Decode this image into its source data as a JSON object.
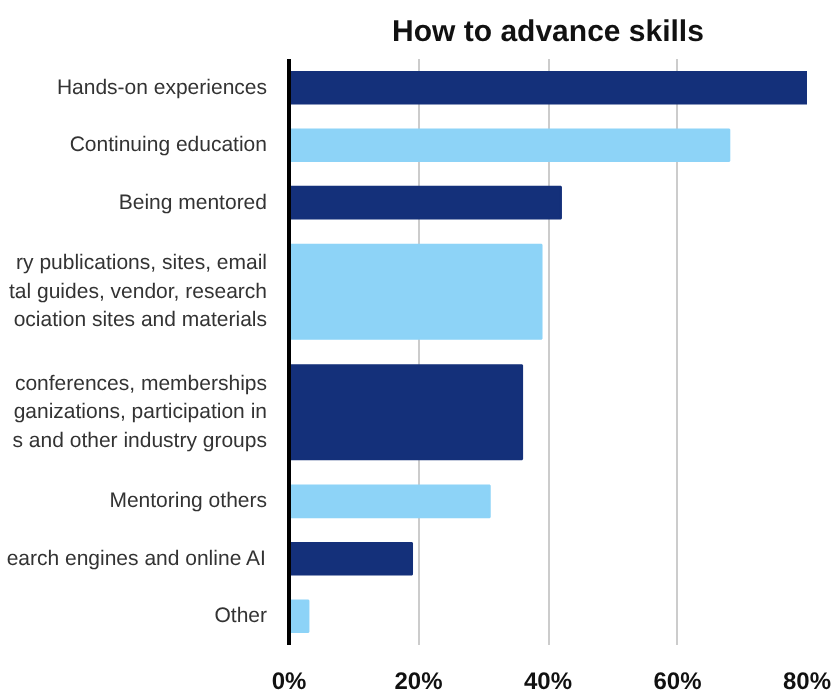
{
  "chart_data": {
    "type": "bar",
    "orientation": "horizontal",
    "title": "How to advance skills",
    "categories": [
      "Hands-on experiences",
      "Continuing education",
      "Being mentored",
      "ry publications, sites, email\ntal guides, vendor, research\nociation sites and materials",
      "conferences, memberships\nganizations, participation in\ns and other industry groups",
      "Mentoring others",
      "earch engines and online AI",
      "Other"
    ],
    "values": [
      80,
      68,
      42,
      39,
      36,
      31,
      19,
      3
    ],
    "colors": [
      "#14307a",
      "#8dd3f7",
      "#14307a",
      "#8dd3f7",
      "#14307a",
      "#8dd3f7",
      "#14307a",
      "#8dd3f7"
    ],
    "xlim": [
      0,
      80
    ],
    "xticks": [
      {
        "value": 0,
        "label": "0%"
      },
      {
        "value": 20,
        "label": "20%"
      },
      {
        "value": 40,
        "label": "40%"
      },
      {
        "value": 60,
        "label": "60%"
      },
      {
        "value": 80,
        "label": "80%"
      }
    ],
    "grid": "x"
  }
}
